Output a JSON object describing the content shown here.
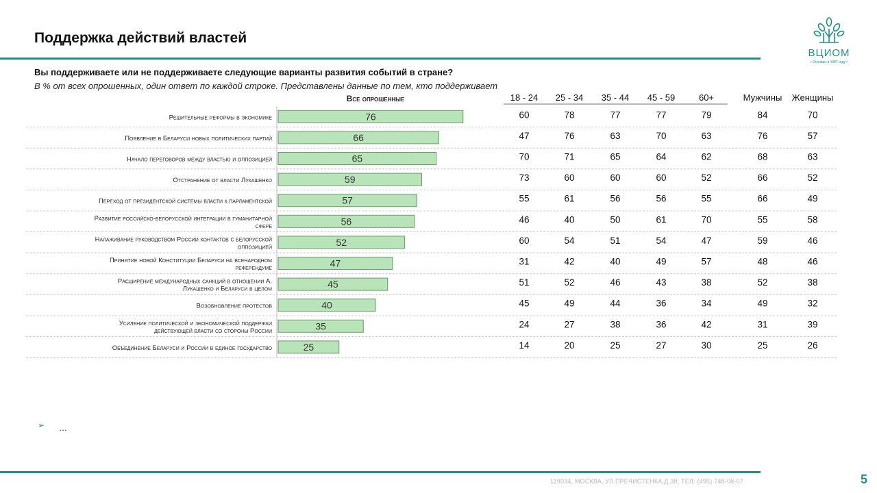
{
  "title": "Поддержка действий властей",
  "question": "Вы поддерживаете или не поддерживаете следующие варианты развития событий в стране?",
  "subtitle": "В % от всех опрошенных, один ответ по каждой строке. Представлены данные по тем, кто поддерживает",
  "logo": {
    "name": "ВЦИОМ",
    "tagline": "• Основан в 1987 году •"
  },
  "bullet": {
    "mark": "➢",
    "text": "…"
  },
  "footer": "119034,  МОСКВА, УЛ.ПРЕЧИСТЕНКА,Д.38, ТЕЛ: (495) 748-08-07",
  "page_number": "5",
  "colors": {
    "bar_fill": "#b9e3b9",
    "bar_stroke": "#6a9a6a",
    "accent": "#1f8f86",
    "grid": "#bbbbbb"
  },
  "chart_data": {
    "type": "bar",
    "orientation": "horizontal",
    "title": "Все опрошенные",
    "categories": [
      "Решительные реформы в экономике",
      "Появление в Беларуси новых политических партий",
      "Начало переговоров между властью и оппозицией",
      "Отстранение от власти Лукашенко",
      "Переход от президентской системы власти к парламентской",
      "Развитие российско-белорусской интеграции в гуманитарной сфере",
      "Налаживание руководством России контактов с белорусской оппозицией",
      "Принятие новой Конституции Беларуси на всенародном референдуме",
      "Расширение международных санкций в отношении А. Лукашенко и Беларуси в целом",
      "Возобновление протестов",
      "Усиление политической и экономической поддержки действующей власти со стороны России",
      "Объединение Беларуси и России в единое государство"
    ],
    "category_lines": [
      [
        "Решительные реформы в экономике"
      ],
      [
        "Появление в Беларуси новых политических партий"
      ],
      [
        "Начало переговоров между властью и оппозицией"
      ],
      [
        "Отстранение от власти Лукашенко"
      ],
      [
        "Переход от президентской системы власти к парламентской"
      ],
      [
        "Развитие российско-белорусской интеграции в гуманитарной",
        "сфере"
      ],
      [
        "Налаживание руководством России контактов с белорусской",
        "оппозицией"
      ],
      [
        "Принятие новой Конституции Беларуси на всенародном",
        "референдуме"
      ],
      [
        "Расширение международных санкций в отношении А.",
        "Лукашенко и Беларуси в целом"
      ],
      [
        "Возобновление протестов"
      ],
      [
        "Усиление политической и экономической поддержки",
        "действующей власти со стороны России"
      ],
      [
        "Объединение Беларуси и России в единое государство"
      ]
    ],
    "values": [
      76,
      66,
      65,
      59,
      57,
      56,
      52,
      47,
      45,
      40,
      35,
      25
    ],
    "xlim": [
      0,
      100
    ],
    "table": {
      "columns": [
        "18 - 24",
        "25 - 34",
        "35 - 44",
        "45 - 59",
        "60+",
        "Мужчины",
        "Женщины"
      ],
      "rows": [
        [
          60,
          78,
          77,
          77,
          79,
          84,
          70
        ],
        [
          47,
          76,
          63,
          70,
          63,
          76,
          57
        ],
        [
          70,
          71,
          65,
          64,
          62,
          68,
          63
        ],
        [
          73,
          60,
          60,
          60,
          52,
          66,
          52
        ],
        [
          55,
          61,
          56,
          56,
          55,
          66,
          49
        ],
        [
          46,
          40,
          50,
          61,
          70,
          55,
          58
        ],
        [
          60,
          54,
          51,
          54,
          47,
          59,
          46
        ],
        [
          31,
          42,
          40,
          49,
          57,
          48,
          46
        ],
        [
          51,
          52,
          46,
          43,
          38,
          52,
          38
        ],
        [
          45,
          49,
          44,
          36,
          34,
          49,
          32
        ],
        [
          24,
          27,
          38,
          36,
          42,
          31,
          39
        ],
        [
          14,
          20,
          25,
          27,
          30,
          25,
          26
        ]
      ]
    }
  }
}
